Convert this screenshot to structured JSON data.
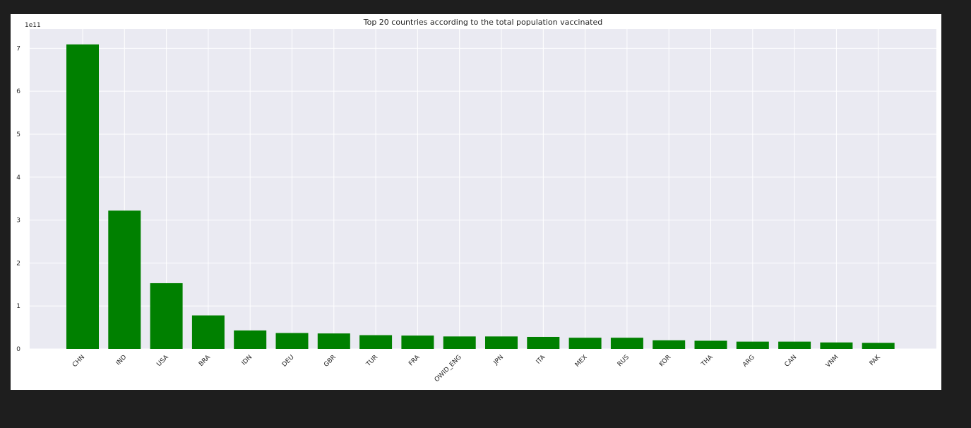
{
  "chart_data": {
    "type": "bar",
    "title": "Top 20 countries according to the total population vaccinated",
    "xlabel": "",
    "ylabel": "",
    "offset_text": "1e11",
    "scale_factor": 100000000000.0,
    "categories": [
      "CHN",
      "IND",
      "USA",
      "BRA",
      "IDN",
      "DEU",
      "GBR",
      "TUR",
      "FRA",
      "OWID_ENG",
      "JPN",
      "ITA",
      "MEX",
      "RUS",
      "KOR",
      "THA",
      "ARG",
      "CAN",
      "VNM",
      "PAK"
    ],
    "values": [
      709000000000,
      322000000000,
      153000000000,
      78000000000,
      43000000000,
      37000000000,
      36000000000,
      32000000000,
      31000000000,
      29000000000,
      29000000000,
      28000000000,
      26000000000,
      26000000000,
      20000000000,
      19000000000,
      17000000000,
      17000000000,
      15000000000,
      14000000000
    ],
    "yticks": [
      "0",
      "1",
      "2",
      "3",
      "4",
      "5",
      "6",
      "7"
    ],
    "ylim": [
      0,
      745000000000
    ],
    "bar_color": "#008000",
    "background_color": "#eaeaf2",
    "grid": true,
    "grid_color": "#ffffff"
  }
}
